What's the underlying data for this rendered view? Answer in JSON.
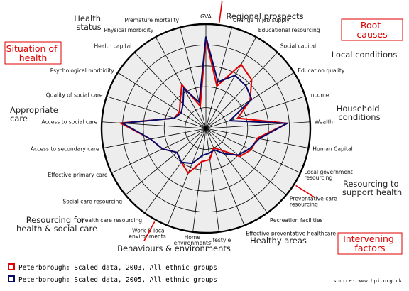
{
  "chart_data": {
    "type": "radar",
    "axes": [
      "GVA",
      "Change in job supply",
      "Educational resourcing",
      "Social capital",
      "Education quality",
      "Income",
      "Wealth",
      "Human Capital",
      "Local government resourcing",
      "Preventative care resourcing",
      "Recreation facilities",
      "Effective preventative healthcare",
      "Lifestyle",
      "Home environments",
      "Work & local environments",
      "Health care resourcing",
      "Social care resourcing",
      "Effective primary care",
      "Access to secondary care",
      "Access to social care",
      "Quality of social care",
      "Psychological morbidity",
      "Health capital",
      "Physical morbidity",
      "Premature mortality"
    ],
    "rlim": [
      0,
      5
    ],
    "grid": true,
    "series": [
      {
        "name": "Peterborough: Scaled data, 2003, All ethnic groups",
        "color": "#e00000",
        "values": [
          4.3,
          2.1,
          3.5,
          3.2,
          2.5,
          1.6,
          3.9,
          2.5,
          2.4,
          2.1,
          1.3,
          1.0,
          1.5,
          1.6,
          2.3,
          2.0,
          1.8,
          2.3,
          2.7,
          4.1,
          1.6,
          1.5,
          1.8,
          2.4,
          1.1
        ]
      },
      {
        "name": "Peterborough: Scaled data, 2005, All ethnic groups",
        "color": "#0a0a66",
        "values": [
          4.4,
          2.3,
          2.9,
          2.8,
          2.6,
          1.2,
          3.9,
          2.6,
          2.3,
          2.0,
          1.5,
          1.1,
          1.2,
          1.3,
          1.8,
          2.0,
          1.8,
          2.3,
          2.7,
          4.0,
          1.6,
          1.4,
          1.6,
          2.2,
          1.3
        ]
      }
    ]
  },
  "groups": {
    "health_status": [
      "Health",
      "status"
    ],
    "regional_prospects": "Regional prospects",
    "local_conditions": "Local conditions",
    "household_conditions": [
      "Household",
      "conditions"
    ],
    "resourcing_support": [
      "Resourcing to",
      "support health"
    ],
    "healthy_areas": "Healthy areas",
    "behaviours_environments": "Behaviours & environments",
    "resourcing_health_social": [
      "Resourcing for",
      "health & social care"
    ],
    "appropriate_care": [
      "Appropriate",
      "care"
    ]
  },
  "boxes": {
    "situation_of_health": [
      "Situation of",
      "health"
    ],
    "root_causes": [
      "Root",
      "causes"
    ],
    "intervening_factors": [
      "Intervening",
      "factors"
    ]
  },
  "legend": [
    {
      "label": "Peterborough: Scaled data, 2003, All ethnic groups",
      "color": "#e00000"
    },
    {
      "label": "Peterborough: Scaled data, 2005, All ethnic groups",
      "color": "#0a0a66"
    }
  ],
  "source": "source: www.hpi.org.uk"
}
